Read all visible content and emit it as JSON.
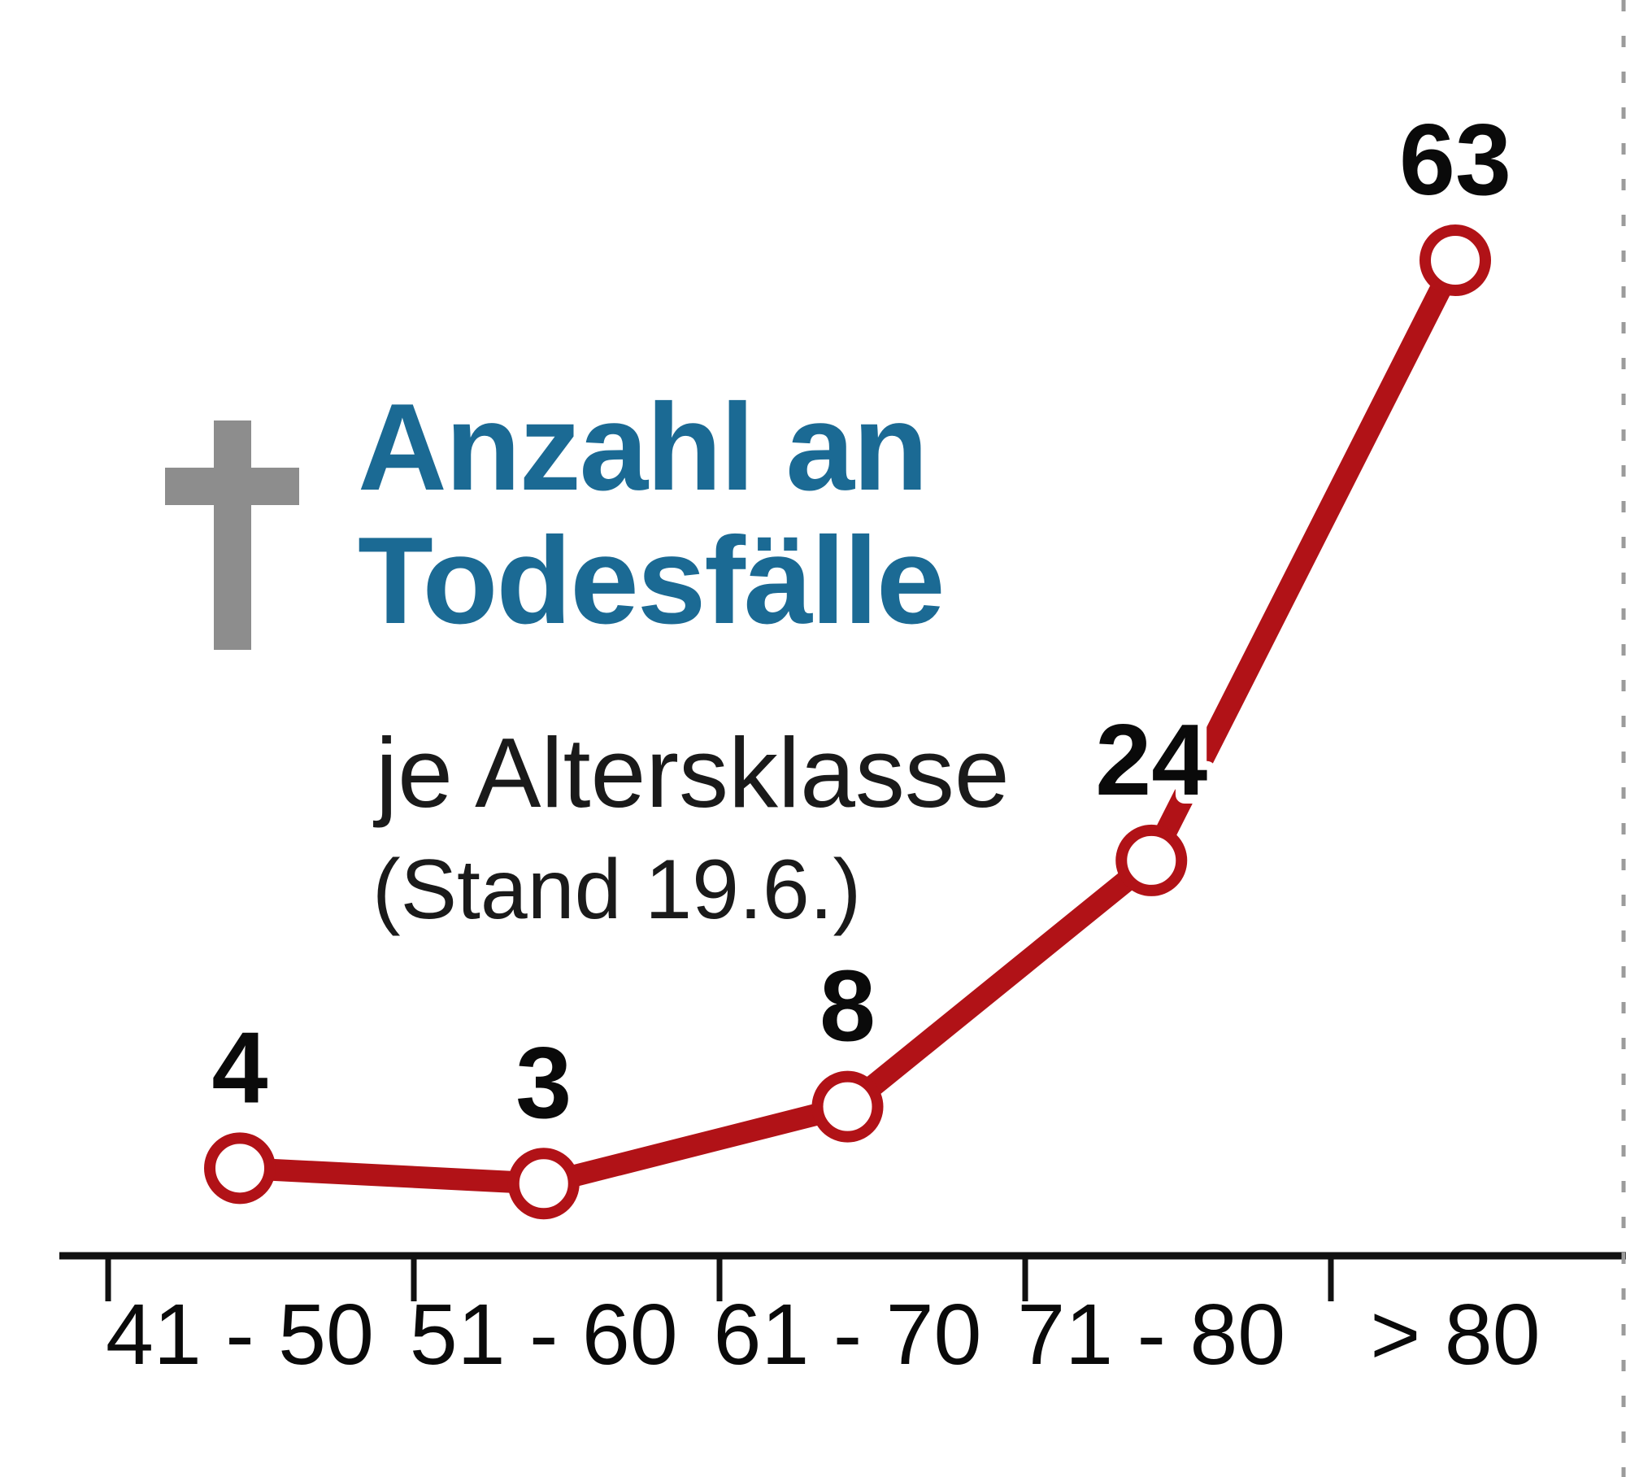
{
  "header": {
    "title_line1": "Anzahl an",
    "title_line2": "Todesfälle",
    "subtitle": "je Altersklasse",
    "note": "(Stand 19.6.)",
    "title_color": "#1b6a94",
    "cross_icon_color": "#8d8d8d"
  },
  "chart_data": {
    "type": "line",
    "title": "Anzahl an Todesfälle",
    "subtitle": "je Altersklasse",
    "note": "(Stand 19.6.)",
    "categories": [
      "41 - 50",
      "51 - 60",
      "61 - 70",
      "71 - 80",
      "> 80"
    ],
    "series": [
      {
        "name": "Todesfälle",
        "values": [
          4,
          3,
          8,
          24,
          63
        ]
      }
    ],
    "data_labels": [
      4,
      3,
      8,
      24,
      63
    ],
    "xlabel": "Altersklasse",
    "ylabel": "Anzahl an Todesfälle",
    "ylim": [
      0,
      70
    ],
    "grid": false,
    "legend_position": "none",
    "line_color": "#b11217",
    "marker_fill": "#ffffff",
    "marker_stroke": "#b11217",
    "axis_color": "#111111",
    "divider_color": "#9b9b9b",
    "label_color": "#0a0a0a"
  }
}
